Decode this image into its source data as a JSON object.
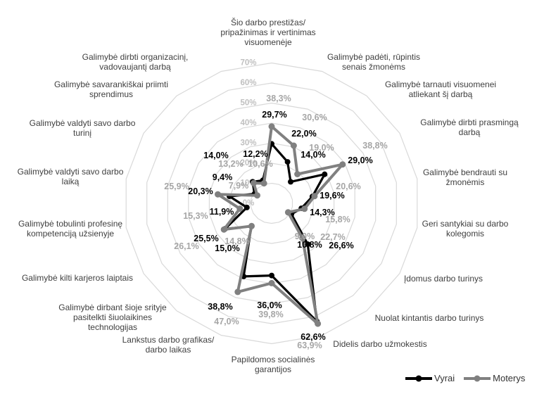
{
  "chart_data": {
    "type": "radar",
    "title": "",
    "axis_max": 70,
    "grid": "polygon-rings",
    "ring_labels": [
      "0%",
      "10%",
      "20%",
      "30%",
      "40%",
      "50%",
      "60%",
      "70%"
    ],
    "value_label_format": "comma-decimal-percent",
    "legend_position": "bottom-right",
    "categories": [
      [
        "Šio darbo prestižas/",
        "pripažinimas ir vertinimas",
        "visuomenėje"
      ],
      [
        "Galimybė padėti, rūpintis",
        "senais žmonėms"
      ],
      [
        "Galimybė tarnauti visuomenei",
        "atliekant šį darbą"
      ],
      [
        "Galimybė dirbti prasmingą",
        "darbą"
      ],
      [
        "Galimybė bendrauti su",
        "žmonėmis"
      ],
      [
        "Geri santykiai su darbo",
        "kolegomis"
      ],
      [
        "Įdomus darbo turinys"
      ],
      [
        "Nuolat kintantis darbo turinys"
      ],
      [
        "Didelis darbo užmokestis"
      ],
      [
        "Papildomos socialinės",
        "garantijos"
      ],
      [
        "Lankstus darbo grafikas/",
        "darbo laikas"
      ],
      [
        "Galimybė dirbant šioje srityje",
        "pasitelkti šiuolaikines",
        "technologijas"
      ],
      [
        "Galimybė kilti karjeros laiptais"
      ],
      [
        "Galimybė tobulinti profesinę",
        "kompetenciją užsienyje"
      ],
      [
        "Galimybė valdyti savo darbo",
        "laiką"
      ],
      [
        "Galimybė valdyti savo darbo",
        "turinį"
      ],
      [
        "Galimybė savarankiškai priimti",
        "sprendimus"
      ],
      [
        "Galimybė dirbti organizacinį,",
        "vadovaujantį darbą"
      ]
    ],
    "series": [
      {
        "name": "Vyrai",
        "color": "#000000",
        "label_color": "#000000",
        "values": [
          29.7,
          22.0,
          14.0,
          29.0,
          19.6,
          14.3,
          10.8,
          26.6,
          62.6,
          36.0,
          38.8,
          15.0,
          25.5,
          11.9,
          20.3,
          9.4,
          14.0,
          12.2
        ]
      },
      {
        "name": "Moterys",
        "color": "#808080",
        "label_color": "#a6a6a6",
        "values": [
          38.3,
          30.6,
          19.0,
          38.8,
          20.6,
          15.8,
          9.0,
          22.7,
          63.9,
          39.8,
          47.0,
          14.8,
          26.1,
          15.3,
          25.9,
          7.9,
          13.2,
          10.6
        ]
      }
    ],
    "colors": {
      "grid_line": "#d9d9d9",
      "ring_label": "#c0c0c0",
      "category_label": "#404040"
    }
  },
  "legend": {
    "items": [
      "Vyrai",
      "Moterys"
    ]
  }
}
